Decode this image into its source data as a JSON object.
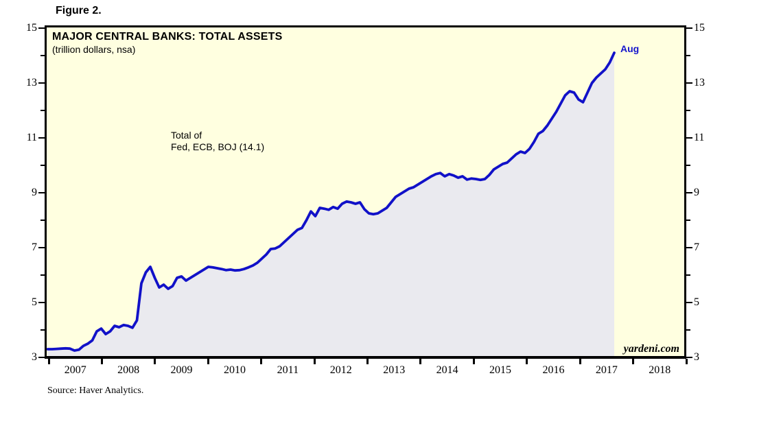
{
  "figure_label": "Figure 2.",
  "source_note": "Source: Haver Analytics.",
  "chart": {
    "title": "MAJOR CENTRAL BANKS: TOTAL ASSETS",
    "subtitle": "(trillion dollars, nsa)",
    "annotation": [
      "Total of",
      "Fed, ECB, BOJ (14.1)"
    ],
    "endpoint_label": "Aug",
    "watermark": "yardeni.com",
    "colors": {
      "plot_background": "#FFFFE0",
      "area_fill": "#EAEAEF",
      "line": "#1111C8",
      "endpoint_label_color": "#1414CC",
      "axis": "#000000"
    }
  },
  "chart_data": {
    "type": "area",
    "title": "MAJOR CENTRAL BANKS: TOTAL ASSETS",
    "subtitle": "(trillion dollars, nsa)",
    "grid": false,
    "legend": false,
    "ylim": [
      3,
      15
    ],
    "y_major_ticks": [
      15,
      13,
      11,
      9,
      7,
      5,
      3
    ],
    "y_minor_ticks": [
      14,
      12,
      10,
      8,
      6,
      4
    ],
    "x_year_labels": [
      "2007",
      "2008",
      "2009",
      "2010",
      "2011",
      "2012",
      "2013",
      "2014",
      "2015",
      "2016",
      "2017",
      "2018"
    ],
    "x_axis_year_span": 12,
    "x": {
      "start": "2007-01",
      "end": "2017-08",
      "frequency": "monthly"
    },
    "series": [
      {
        "name": "Total of Fed, ECB, BOJ",
        "unit": "trillion dollars, nsa",
        "last_point_label": "Aug",
        "last_value": 14.1,
        "values": [
          3.3,
          3.3,
          3.31,
          3.32,
          3.33,
          3.32,
          3.25,
          3.28,
          3.42,
          3.5,
          3.62,
          3.95,
          4.05,
          3.85,
          3.95,
          4.15,
          4.1,
          4.18,
          4.15,
          4.08,
          4.35,
          5.7,
          6.1,
          6.3,
          5.9,
          5.55,
          5.65,
          5.5,
          5.6,
          5.9,
          5.95,
          5.8,
          5.9,
          6.0,
          6.1,
          6.2,
          6.3,
          6.28,
          6.25,
          6.22,
          6.18,
          6.2,
          6.17,
          6.18,
          6.22,
          6.28,
          6.35,
          6.45,
          6.6,
          6.75,
          6.95,
          6.97,
          7.05,
          7.2,
          7.35,
          7.5,
          7.65,
          7.72,
          8.0,
          8.32,
          8.15,
          8.45,
          8.42,
          8.38,
          8.48,
          8.42,
          8.6,
          8.68,
          8.65,
          8.6,
          8.65,
          8.4,
          8.25,
          8.22,
          8.25,
          8.35,
          8.45,
          8.65,
          8.85,
          8.95,
          9.05,
          9.15,
          9.2,
          9.3,
          9.4,
          9.5,
          9.6,
          9.68,
          9.72,
          9.6,
          9.68,
          9.63,
          9.55,
          9.6,
          9.48,
          9.52,
          9.5,
          9.47,
          9.5,
          9.65,
          9.85,
          9.95,
          10.05,
          10.1,
          10.25,
          10.4,
          10.5,
          10.45,
          10.6,
          10.85,
          11.15,
          11.25,
          11.45,
          11.7,
          11.95,
          12.25,
          12.55,
          12.7,
          12.65,
          12.4,
          12.3,
          12.65,
          13.0,
          13.2,
          13.35,
          13.5,
          13.75,
          14.1
        ]
      }
    ]
  }
}
